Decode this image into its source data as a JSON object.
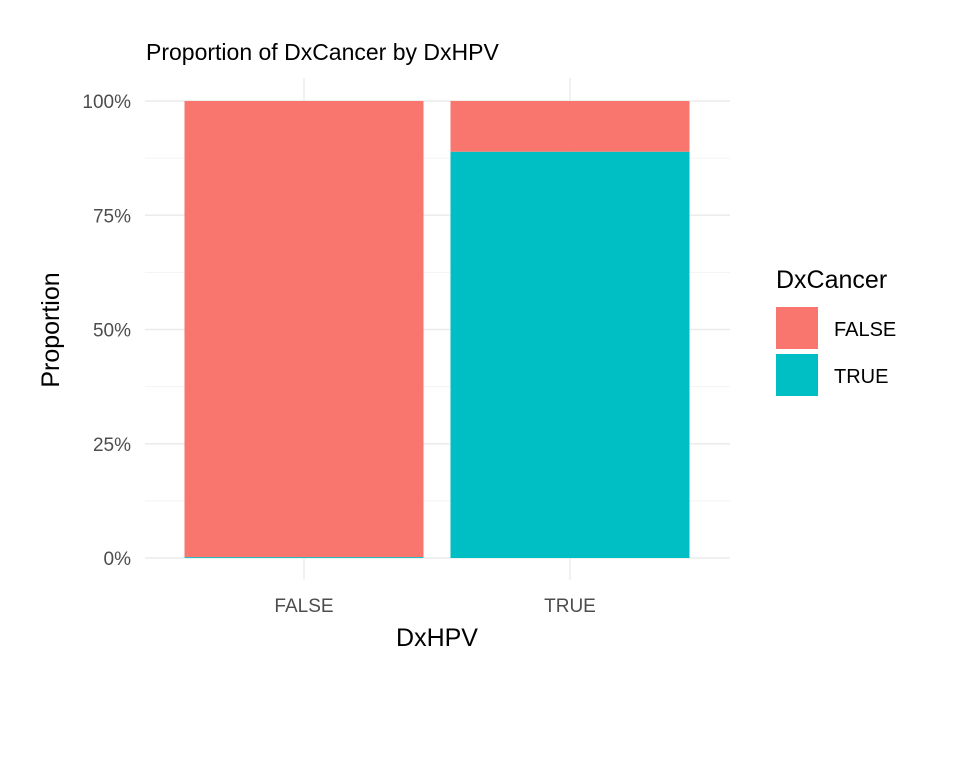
{
  "chart_data": {
    "type": "bar",
    "stacked": true,
    "title": "Proportion of DxCancer by DxHPV",
    "xlabel": "DxHPV",
    "ylabel": "Proportion",
    "categories": [
      "FALSE",
      "TRUE"
    ],
    "ylim": [
      0,
      1
    ],
    "yticks": [
      0,
      0.25,
      0.5,
      0.75,
      1
    ],
    "ytick_labels": [
      "0%",
      "25%",
      "50%",
      "75%",
      "100%"
    ],
    "grid": true,
    "legend": {
      "title": "DxCancer",
      "placement": "right",
      "entries": [
        "FALSE",
        "TRUE"
      ]
    },
    "series": [
      {
        "name": "FALSE",
        "color": "#F8766D",
        "values": [
          0.998,
          0.111
        ]
      },
      {
        "name": "TRUE",
        "color": "#00BFC4",
        "values": [
          0.002,
          0.889
        ]
      }
    ]
  }
}
